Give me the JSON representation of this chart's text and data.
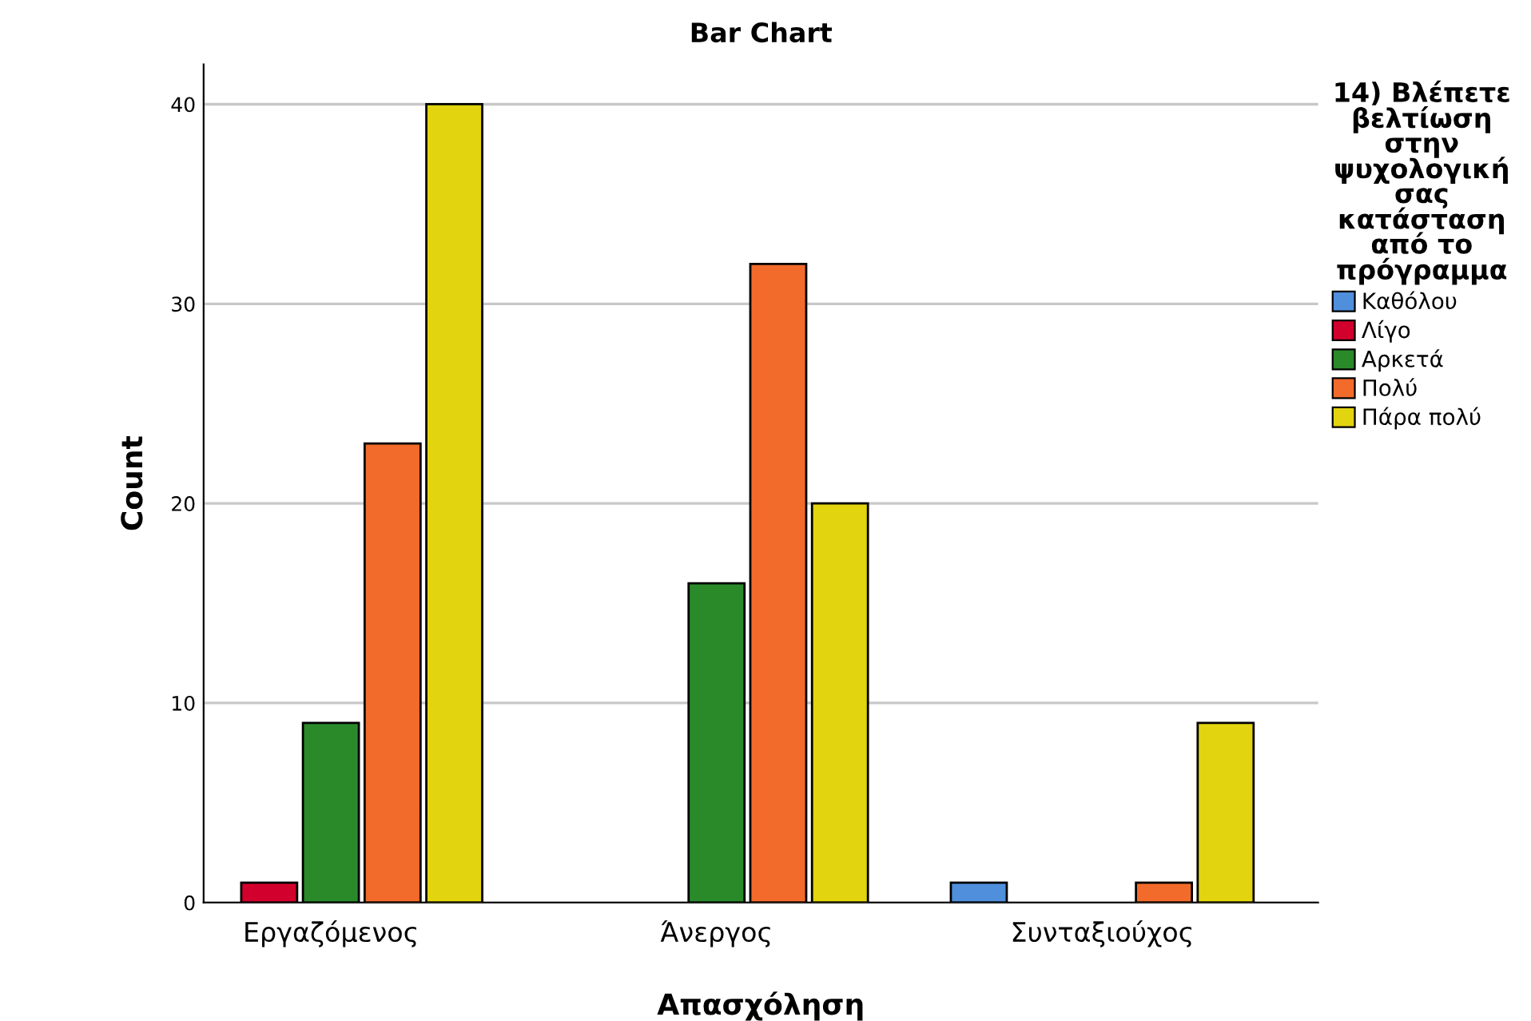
{
  "chart_data": {
    "type": "bar",
    "title": "Bar Chart",
    "xlabel": "Απασχόληση",
    "ylabel": "Count",
    "legend_title": "14) Βλέπετε βελτίωση στην ψυχολογική σας κατάσταση από το πρόγραμμα",
    "categories": [
      "Εργαζόμενος",
      "Άνεργος",
      "Συνταξιούχος"
    ],
    "series": [
      {
        "name": "Καθόλου",
        "color": "#4f8fdc",
        "values": [
          0,
          0,
          1
        ]
      },
      {
        "name": "Λίγο",
        "color": "#d2002c",
        "values": [
          1,
          0,
          0
        ]
      },
      {
        "name": "Αρκετά",
        "color": "#2a8a2a",
        "values": [
          9,
          16,
          0
        ]
      },
      {
        "name": "Πολύ",
        "color": "#f26b2b",
        "values": [
          23,
          32,
          1
        ]
      },
      {
        "name": "Πάρα πολύ",
        "color": "#e2d40e",
        "values": [
          40,
          20,
          9
        ]
      }
    ],
    "ylim": [
      0,
      42
    ],
    "yticks": [
      0,
      10,
      20,
      30,
      40
    ],
    "grid": "y",
    "legend": "right"
  }
}
